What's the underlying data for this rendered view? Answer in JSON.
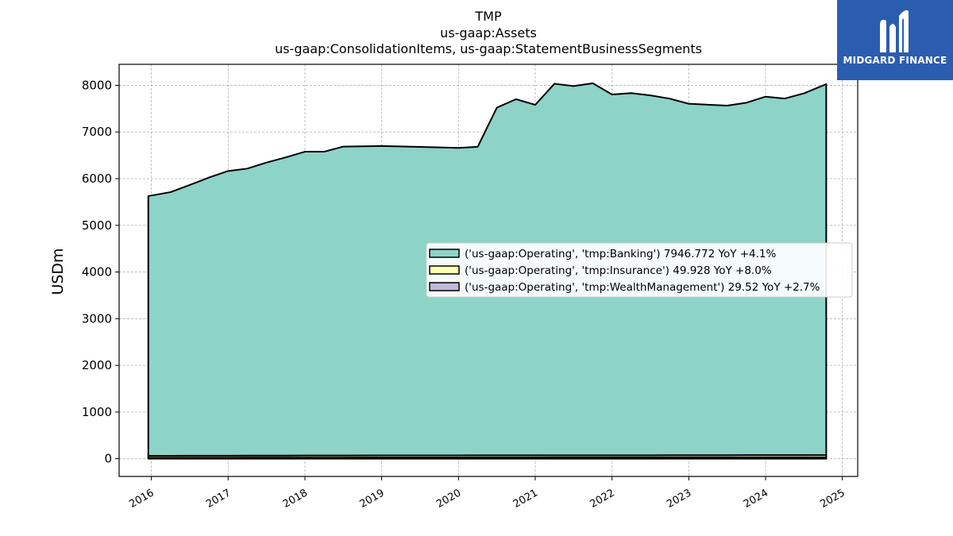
{
  "chart_data": {
    "type": "area",
    "title_lines": [
      "TMP",
      "us-gaap:Assets",
      "us-gaap:ConsolidationItems, us-gaap:StatementBusinessSegments"
    ],
    "ylabel": "USDm",
    "xlabel": "",
    "ylim": [
      -380,
      8450
    ],
    "xlim": [
      2015.58,
      2025.2
    ],
    "y_ticks": [
      0,
      1000,
      2000,
      3000,
      4000,
      5000,
      6000,
      7000,
      8000
    ],
    "x_ticks": [
      2016,
      2017,
      2018,
      2019,
      2020,
      2021,
      2022,
      2023,
      2024,
      2025
    ],
    "grid": true,
    "legend_position": "center-right",
    "x": [
      2015.96,
      2016.25,
      2016.5,
      2016.75,
      2017.0,
      2017.25,
      2017.5,
      2017.75,
      2018.0,
      2018.25,
      2018.5,
      2019.0,
      2019.5,
      2020.0,
      2020.25,
      2020.5,
      2020.75,
      2021.0,
      2021.25,
      2021.5,
      2021.75,
      2022.0,
      2022.25,
      2022.5,
      2022.75,
      2023.0,
      2023.25,
      2023.5,
      2023.75,
      2024.0,
      2024.25,
      2024.5,
      2024.79
    ],
    "series": [
      {
        "name": "('us-gaap:Operating', 'tmp:WealthManagement')",
        "legend": "('us-gaap:Operating', 'tmp:WealthManagement') 29.52 YoY +2.7%",
        "color": "#bebada",
        "values": [
          22,
          22,
          23,
          23,
          23,
          24,
          24,
          24,
          25,
          25,
          25,
          26,
          26,
          26,
          27,
          27,
          27,
          27,
          28,
          28,
          28,
          28,
          28,
          28,
          28,
          28,
          28,
          29,
          29,
          29,
          29,
          29,
          29.52
        ]
      },
      {
        "name": "('us-gaap:Operating', 'tmp:Insurance')",
        "legend": "('us-gaap:Operating', 'tmp:Insurance') 49.928 YoY +8.0%",
        "color": "#ffffb3",
        "values": [
          40,
          40,
          41,
          41,
          41,
          42,
          42,
          42,
          43,
          43,
          43,
          44,
          44,
          44,
          45,
          45,
          45,
          45,
          46,
          46,
          46,
          46,
          46,
          46,
          47,
          47,
          47,
          47,
          48,
          48,
          48,
          49,
          49.93
        ]
      },
      {
        "name": "('us-gaap:Operating', 'tmp:Banking')",
        "legend": "('us-gaap:Operating', 'tmp:Banking') 7946.772 YoY +4.1%",
        "color": "#8dd3c7",
        "values": [
          5565,
          5650,
          5800,
          5960,
          6100,
          6150,
          6280,
          6390,
          6510,
          6510,
          6620,
          6630,
          6610,
          6590,
          6610,
          7450,
          7630,
          7510,
          7960,
          7910,
          7970,
          7730,
          7760,
          7710,
          7640,
          7530,
          7510,
          7490,
          7550,
          7680,
          7640,
          7750,
          7946.77
        ]
      }
    ]
  },
  "logo": {
    "text": "MIDGARD FINANCE"
  }
}
